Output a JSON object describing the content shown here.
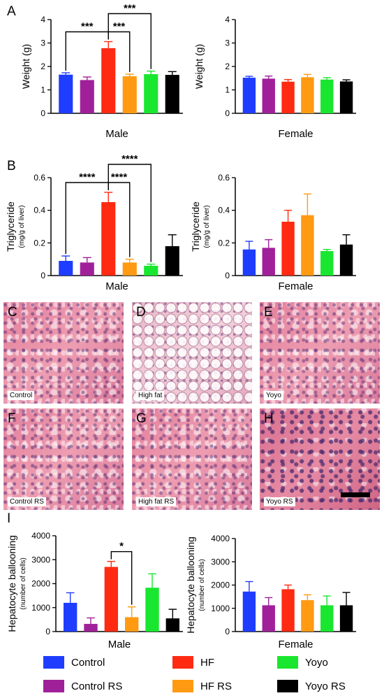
{
  "colors": {
    "control": "#1f3dff",
    "control_rs": "#a0209a",
    "hf": "#ff2a12",
    "hf_rs": "#ff9a12",
    "yoyo": "#19e62e",
    "yoyo_rs": "#000000"
  },
  "panel_letters": {
    "a": "A",
    "b": "B",
    "i": "I"
  },
  "legend": [
    {
      "label": "Control",
      "color_key": "control"
    },
    {
      "label": "HF",
      "color_key": "hf"
    },
    {
      "label": "Yoyo",
      "color_key": "yoyo"
    },
    {
      "label": "Control RS",
      "color_key": "control_rs"
    },
    {
      "label": "HF RS",
      "color_key": "hf_rs"
    },
    {
      "label": "Yoyo RS",
      "color_key": "yoyo_rs"
    }
  ],
  "micrographs": [
    {
      "letter": "C",
      "label": "Control",
      "style": "normal"
    },
    {
      "letter": "D",
      "label": "High fat",
      "style": "fatty"
    },
    {
      "letter": "E",
      "label": "Yoyo",
      "style": "normal"
    },
    {
      "letter": "F",
      "label": "Control RS",
      "style": "normal"
    },
    {
      "letter": "G",
      "label": "High fat RS",
      "style": "normal"
    },
    {
      "letter": "H",
      "label": "Yoyo RS",
      "style": "dense"
    }
  ],
  "chart_data": [
    {
      "id": "a-male",
      "type": "bar",
      "xlabel": "Male",
      "ylabel": "Weight (g)",
      "ylabel_sub": "",
      "ylim": [
        0,
        4
      ],
      "yticks": [
        "0",
        "1",
        "2",
        "3",
        "4"
      ],
      "values": [
        1.65,
        1.42,
        2.78,
        1.58,
        1.67,
        1.64
      ],
      "errors": [
        0.08,
        0.13,
        0.28,
        0.09,
        0.13,
        0.14
      ],
      "significance": [
        {
          "from": 0,
          "to": 2,
          "label": "***"
        },
        {
          "from": 2,
          "to": 3,
          "label": "***"
        },
        {
          "from": 2,
          "to": 4,
          "label": "***"
        }
      ]
    },
    {
      "id": "a-female",
      "type": "bar",
      "xlabel": "Female",
      "ylabel": "Weight (g)",
      "ylabel_sub": "",
      "ylim": [
        0,
        4
      ],
      "yticks": [
        "0",
        "1",
        "2",
        "3",
        "4"
      ],
      "values": [
        1.52,
        1.48,
        1.35,
        1.54,
        1.44,
        1.36
      ],
      "errors": [
        0.06,
        0.11,
        0.09,
        0.12,
        0.08,
        0.07
      ],
      "significance": []
    },
    {
      "id": "b-male",
      "type": "bar",
      "xlabel": "Male",
      "ylabel": "Triglyceride",
      "ylabel_sub": "(mg/g of liver)",
      "ylim": [
        0,
        0.6
      ],
      "yticks": [
        "0",
        "0.2",
        "0.4",
        "0.6"
      ],
      "values": [
        0.09,
        0.08,
        0.45,
        0.08,
        0.06,
        0.18
      ],
      "errors": [
        0.03,
        0.03,
        0.06,
        0.02,
        0.01,
        0.07
      ],
      "significance": [
        {
          "from": 0,
          "to": 2,
          "label": "****"
        },
        {
          "from": 2,
          "to": 3,
          "label": "****"
        },
        {
          "from": 2,
          "to": 4,
          "label": "****"
        }
      ]
    },
    {
      "id": "b-female",
      "type": "bar",
      "xlabel": "Female",
      "ylabel": "Triglyceride",
      "ylabel_sub": "(mg/g of liver)",
      "ylim": [
        0,
        0.6
      ],
      "yticks": [
        "0",
        "0.2",
        "0.4",
        "0.6"
      ],
      "values": [
        0.16,
        0.17,
        0.33,
        0.37,
        0.15,
        0.19
      ],
      "errors": [
        0.05,
        0.05,
        0.07,
        0.13,
        0.01,
        0.06
      ],
      "significance": []
    },
    {
      "id": "i-male",
      "type": "bar",
      "xlabel": "Male",
      "ylabel": "Hepatocyte ballooning",
      "ylabel_sub": "(number of cells)",
      "ylim": [
        0,
        4000
      ],
      "yticks": [
        "0",
        "1000",
        "2000",
        "3000",
        "4000"
      ],
      "values": [
        1200,
        320,
        2700,
        600,
        1830,
        550
      ],
      "errors": [
        420,
        250,
        230,
        430,
        580,
        380
      ],
      "significance": [
        {
          "from": 2,
          "to": 3,
          "label": "*"
        }
      ]
    },
    {
      "id": "i-female",
      "type": "bar",
      "xlabel": "Female",
      "ylabel": "Hepatocyte ballooning",
      "ylabel_sub": "(number of cells)",
      "ylim": [
        0,
        4000
      ],
      "yticks": [
        "0",
        "1000",
        "2000",
        "3000",
        "4000"
      ],
      "values": [
        1720,
        1130,
        1820,
        1350,
        1130,
        1130
      ],
      "errors": [
        430,
        330,
        180,
        230,
        400,
        550
      ],
      "significance": []
    }
  ]
}
